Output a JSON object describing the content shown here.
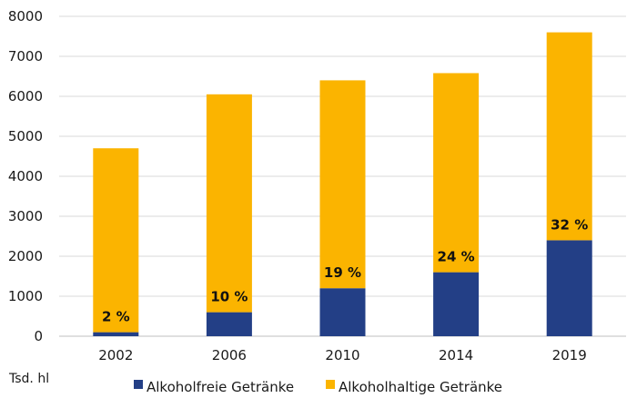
{
  "chart_data": {
    "type": "bar",
    "stacked": true,
    "categories": [
      "2002",
      "2006",
      "2010",
      "2014",
      "2019"
    ],
    "series": [
      {
        "name": "Alkoholfreie Getränke",
        "values": [
          100,
          600,
          1200,
          1600,
          2400
        ],
        "color": "#233f86"
      },
      {
        "name": "Alkoholhaltige Getränke",
        "values": [
          4600,
          5450,
          5200,
          4980,
          5200
        ],
        "color": "#fbb400"
      }
    ],
    "totals": [
      4700,
      6050,
      6400,
      6580,
      7600
    ],
    "data_labels": [
      "2 %",
      "10 %",
      "19 %",
      "24 %",
      "32 %"
    ],
    "ylim": [
      0,
      8000
    ],
    "yticks": [
      0,
      1000,
      2000,
      3000,
      4000,
      5000,
      6000,
      7000,
      8000
    ],
    "unit_label": "Tsd. hl",
    "grid": true,
    "legend_position": "bottom"
  }
}
